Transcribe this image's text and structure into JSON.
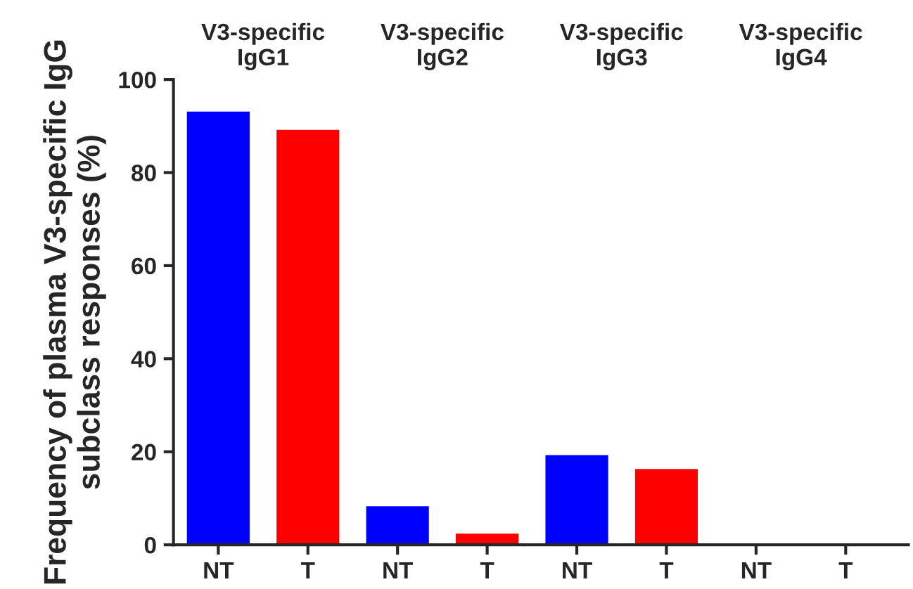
{
  "chart_data": {
    "type": "bar",
    "ylabel": "Frequency of plasma V3-specific IgG subclass responses (%)",
    "categories": [
      "NT",
      "T",
      "NT",
      "T",
      "NT",
      "T",
      "NT",
      "T"
    ],
    "values": [
      93.1,
      89.2,
      8.3,
      2.4,
      19.3,
      16.3,
      0,
      0
    ],
    "colors": [
      "#0000ff",
      "#ff0000",
      "#0000ff",
      "#ff0000",
      "#0000ff",
      "#ff0000",
      "#0000ff",
      "#ff0000"
    ],
    "ylim": [
      0,
      100
    ],
    "yticks": [
      0,
      20,
      40,
      60,
      80,
      100
    ],
    "annotations": [
      "V3-specific\nIgG1",
      "V3-specific\nIgG2",
      "V3-specific\nIgG3",
      "V3-specific\nIgG4"
    ]
  }
}
